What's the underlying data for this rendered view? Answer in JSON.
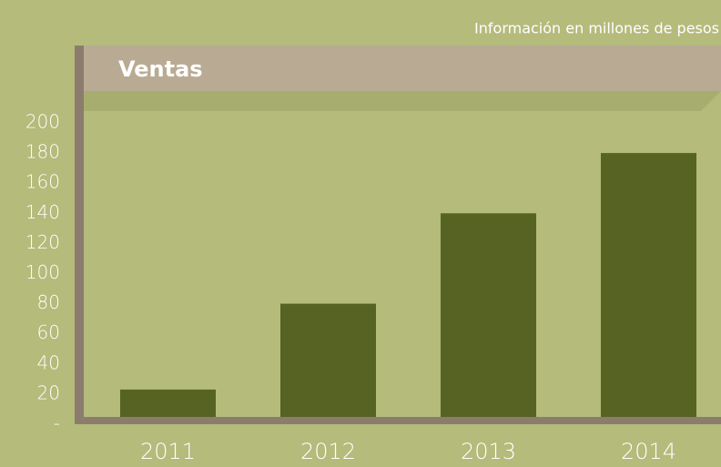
{
  "chart_data": {
    "type": "bar",
    "title": "Ventas",
    "subtitle": "Información en millones de pesos",
    "categories": [
      "2011",
      "2012",
      "2013",
      "2014"
    ],
    "values": [
      23,
      80,
      140,
      180
    ],
    "color": "#566323",
    "ylim": [
      0,
      200
    ],
    "yticks": [
      {
        "value": 0,
        "label": "-"
      },
      20,
      40,
      60,
      80,
      100,
      120,
      140,
      160,
      180,
      200
    ]
  }
}
